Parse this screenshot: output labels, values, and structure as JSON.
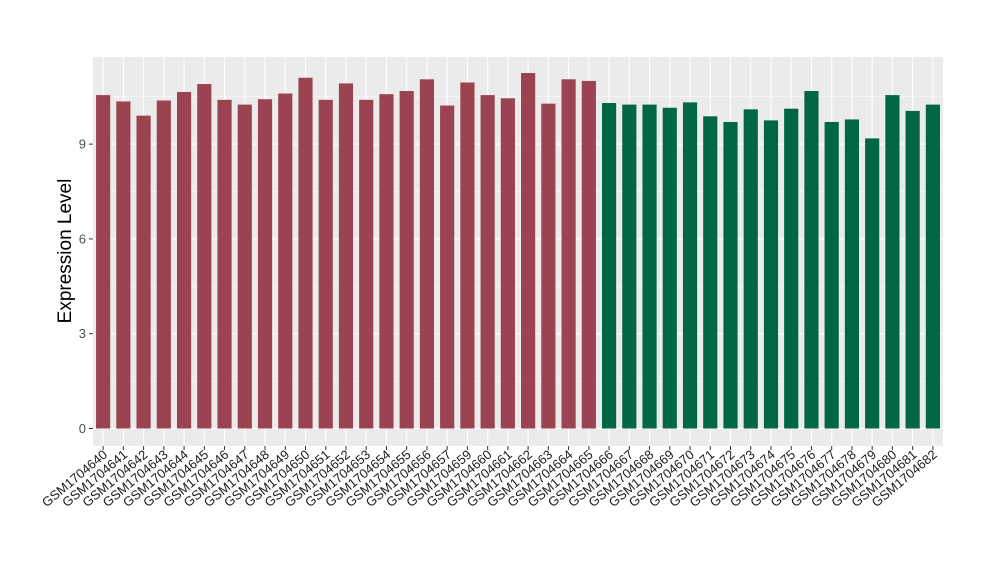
{
  "chart_data": {
    "type": "bar",
    "title": "",
    "xlabel": "",
    "ylabel": "Expression Level",
    "ylim": [
      0,
      12
    ],
    "yticks": [
      0,
      3,
      6,
      9
    ],
    "grid": true,
    "legend": "none",
    "colors": {
      "panel_background": "#ebebeb",
      "gridline": "#ffffff",
      "group_a": "#9b4350",
      "group_b": "#006743"
    },
    "categories": [
      "GSM1704640",
      "GSM1704641",
      "GSM1704642",
      "GSM1704643",
      "GSM1704644",
      "GSM1704645",
      "GSM1704646",
      "GSM1704647",
      "GSM1704648",
      "GSM1704649",
      "GSM1704650",
      "GSM1704651",
      "GSM1704652",
      "GSM1704653",
      "GSM1704654",
      "GSM1704655",
      "GSM1704656",
      "GSM1704657",
      "GSM1704659",
      "GSM1704660",
      "GSM1704661",
      "GSM1704662",
      "GSM1704663",
      "GSM1704664",
      "GSM1704665",
      "GSM1704666",
      "GSM1704667",
      "GSM1704668",
      "GSM1704669",
      "GSM1704670",
      "GSM1704671",
      "GSM1704672",
      "GSM1704673",
      "GSM1704674",
      "GSM1704675",
      "GSM1704676",
      "GSM1704677",
      "GSM1704678",
      "GSM1704679",
      "GSM1704680",
      "GSM1704681",
      "GSM1704682"
    ],
    "values": [
      10.55,
      10.35,
      9.9,
      10.38,
      10.65,
      10.9,
      10.4,
      10.25,
      10.42,
      10.6,
      11.1,
      10.4,
      10.92,
      10.4,
      10.58,
      10.68,
      11.05,
      10.22,
      10.95,
      10.55,
      10.45,
      11.25,
      10.28,
      11.05,
      11.0,
      10.3,
      10.25,
      10.25,
      10.15,
      10.32,
      9.88,
      9.7,
      10.1,
      9.75,
      10.12,
      10.68,
      9.7,
      9.78,
      9.18,
      10.55,
      10.05,
      10.25
    ],
    "groups": [
      "a",
      "a",
      "a",
      "a",
      "a",
      "a",
      "a",
      "a",
      "a",
      "a",
      "a",
      "a",
      "a",
      "a",
      "a",
      "a",
      "a",
      "a",
      "a",
      "a",
      "a",
      "a",
      "a",
      "a",
      "a",
      "b",
      "b",
      "b",
      "b",
      "b",
      "b",
      "b",
      "b",
      "b",
      "b",
      "b",
      "b",
      "b",
      "b",
      "b",
      "b",
      "b"
    ]
  }
}
